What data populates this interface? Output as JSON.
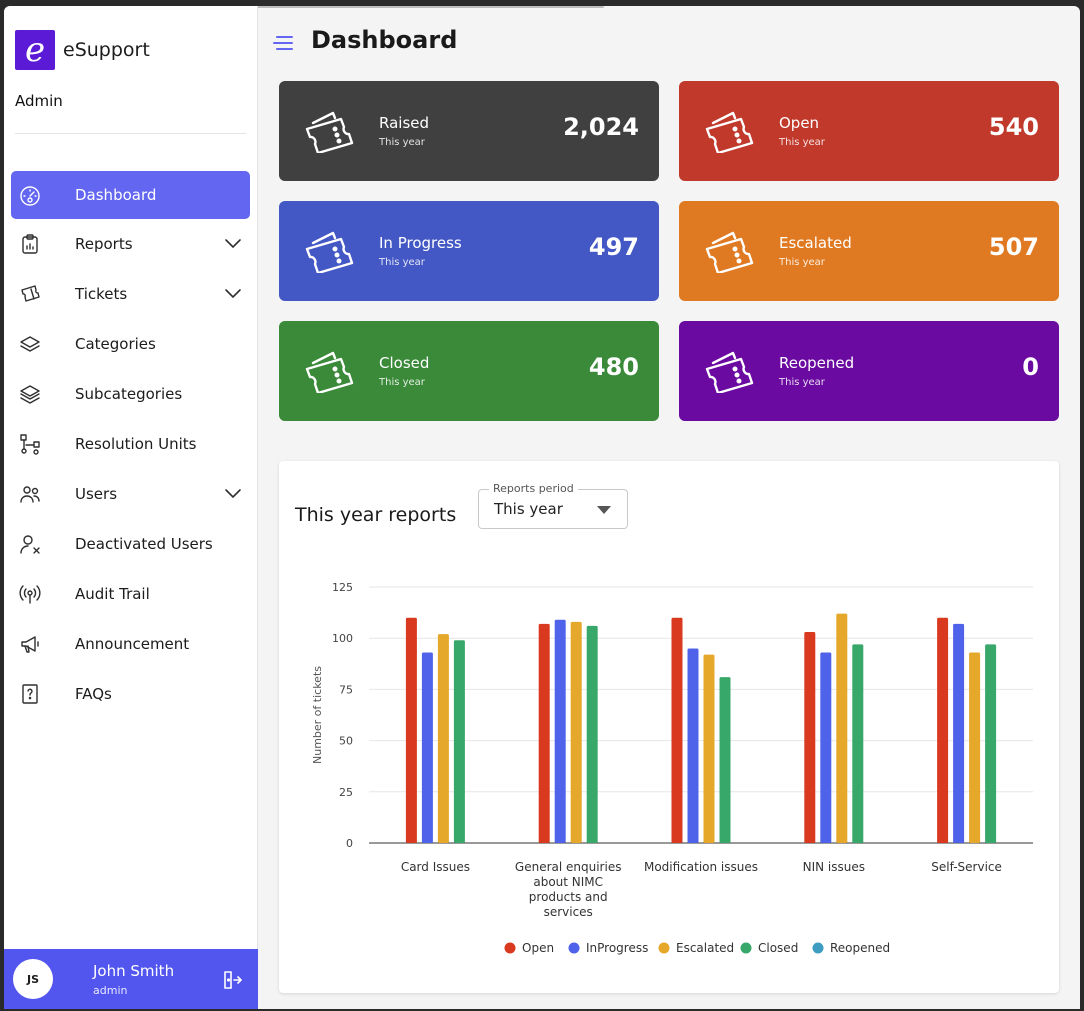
{
  "app": {
    "logo_letter": "e",
    "name": "eSupport",
    "role": "Admin"
  },
  "nav": [
    {
      "label": "Dashboard",
      "icon": "dashboard-gauge-icon",
      "active": true,
      "expandable": false
    },
    {
      "label": "Reports",
      "icon": "clipboard-icon",
      "active": false,
      "expandable": true
    },
    {
      "label": "Tickets",
      "icon": "ticket-icon",
      "active": false,
      "expandable": true
    },
    {
      "label": "Categories",
      "icon": "layers-icon",
      "active": false,
      "expandable": false
    },
    {
      "label": "Subcategories",
      "icon": "layers-stack-icon",
      "active": false,
      "expandable": false
    },
    {
      "label": "Resolution Units",
      "icon": "hierarchy-icon",
      "active": false,
      "expandable": false
    },
    {
      "label": "Users",
      "icon": "users-icon",
      "active": false,
      "expandable": true
    },
    {
      "label": "Deactivated Users",
      "icon": "user-x-icon",
      "active": false,
      "expandable": false
    },
    {
      "label": "Audit Trail",
      "icon": "broadcast-icon",
      "active": false,
      "expandable": false
    },
    {
      "label": "Announcement",
      "icon": "megaphone-icon",
      "active": false,
      "expandable": false
    },
    {
      "label": "FAQs",
      "icon": "question-icon",
      "active": false,
      "expandable": false
    }
  ],
  "user": {
    "initials": "JS",
    "name": "John Smith",
    "role": "admin"
  },
  "header": {
    "title": "Dashboard"
  },
  "cards": [
    {
      "title": "Raised",
      "subtitle": "This year",
      "value": "2,024",
      "color": "#404040"
    },
    {
      "title": "Open",
      "subtitle": "This year",
      "value": "540",
      "color": "#c0392b"
    },
    {
      "title": "In Progress",
      "subtitle": "This year",
      "value": "497",
      "color": "#4358c4"
    },
    {
      "title": "Escalated",
      "subtitle": "This year",
      "value": "507",
      "color": "#e07a22"
    },
    {
      "title": "Closed",
      "subtitle": "This year",
      "value": "480",
      "color": "#3a8a3a"
    },
    {
      "title": "Reopened",
      "subtitle": "This year",
      "value": "0",
      "color": "#6a0aa0"
    }
  ],
  "reports": {
    "title": "This year reports",
    "period_label": "Reports period",
    "period_value": "This year"
  },
  "chart_data": {
    "type": "bar",
    "title": "",
    "xlabel": "",
    "ylabel": "Number of tickets",
    "ylim": [
      0,
      125
    ],
    "yticks": [
      0,
      25,
      50,
      75,
      100,
      125
    ],
    "grid": true,
    "legend_position": "bottom",
    "categories": [
      [
        "Card Issues"
      ],
      [
        "General enquiries",
        "about NIMC",
        "products and",
        "services"
      ],
      [
        "Modification issues"
      ],
      [
        "NIN issues"
      ],
      [
        "Self-Service"
      ]
    ],
    "series": [
      {
        "name": "Open",
        "color": "#d93a1f",
        "values": [
          110,
          107,
          110,
          103,
          110
        ]
      },
      {
        "name": "InProgress",
        "color": "#4f63ea",
        "values": [
          93,
          109,
          95,
          93,
          107
        ]
      },
      {
        "name": "Escalated",
        "color": "#e6a82a",
        "values": [
          102,
          108,
          92,
          112,
          93
        ]
      },
      {
        "name": "Closed",
        "color": "#38a86a",
        "values": [
          99,
          106,
          81,
          97,
          97
        ]
      },
      {
        "name": "Reopened",
        "color": "#3e9cc0",
        "values": [
          0,
          0,
          0,
          0,
          0
        ]
      }
    ]
  }
}
